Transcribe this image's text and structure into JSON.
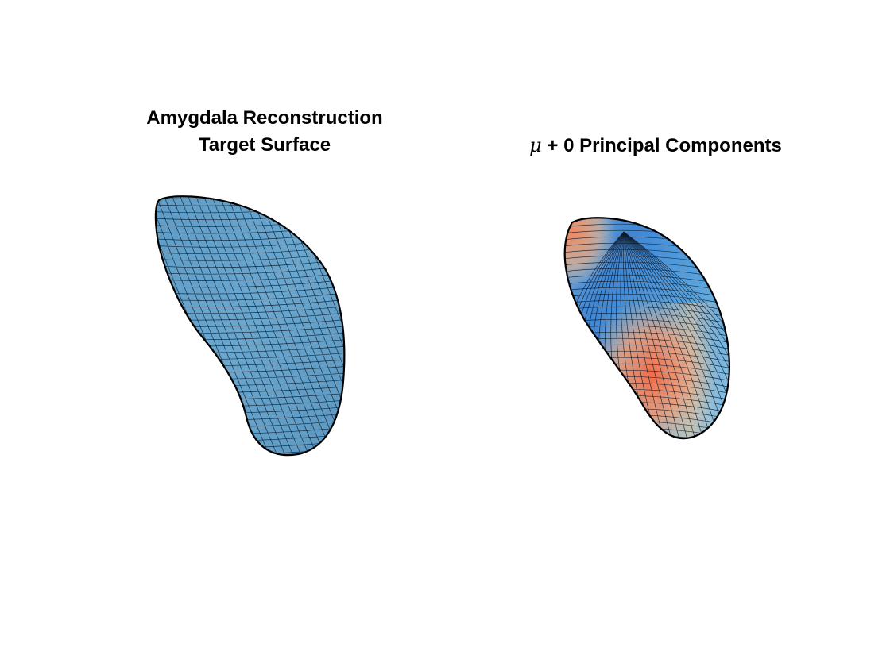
{
  "figure": {
    "left_panel": {
      "title_line1": "Amygdala Reconstruction",
      "title_line2": "Target Surface",
      "surface_color": "#6aa7cf"
    },
    "right_panel": {
      "title_symbol": "μ",
      "title_rest": " + 0 Principal Components",
      "colormap": [
        "#3b7fd4",
        "#7fb8e0",
        "#d8c9a8",
        "#f08a5d",
        "#f26d4a"
      ]
    },
    "background": "#ffffff",
    "edge_color": "#000000"
  }
}
